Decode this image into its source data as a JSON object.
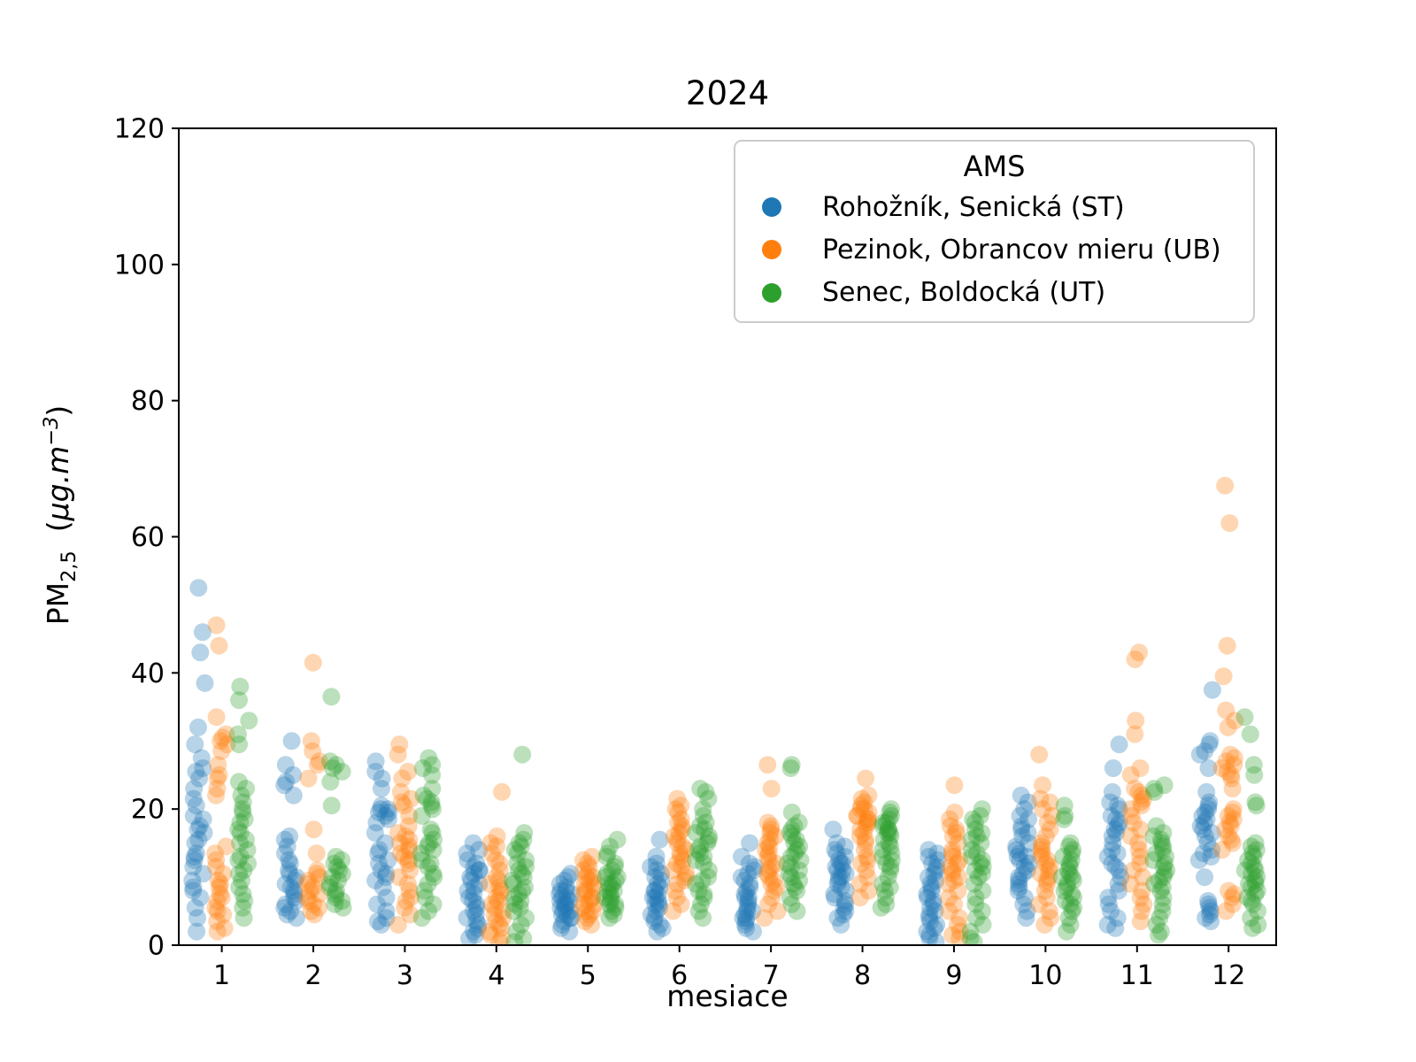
{
  "chart_data": {
    "type": "scatter",
    "title": "2024",
    "xlabel": "mesiace",
    "ylabel": "PM₂,₅  (µg.m⁻³)",
    "ylabel_parts": {
      "base": "PM",
      "sub": "2,5",
      "open": "  (",
      "unit": "µg.m",
      "sup": "−3",
      "close": ")"
    },
    "legend_title": "AMS",
    "legend_position": "upper right",
    "grid": false,
    "xlim": [
      0.53,
      12.52
    ],
    "ylim": [
      0,
      120
    ],
    "xticks": [
      1,
      2,
      3,
      4,
      5,
      6,
      7,
      8,
      9,
      10,
      11,
      12
    ],
    "yticks": [
      0,
      20,
      40,
      60,
      80,
      100,
      120
    ],
    "marker_alpha": 0.32,
    "series": [
      {
        "name": "Rohožník, Senická (ST)",
        "color": "#1f77b4",
        "offset": -0.25,
        "values_by_month": {
          "1": [
            52.5,
            46,
            43,
            38.5,
            32,
            29.5,
            27.5,
            26,
            25.5,
            24.5,
            23,
            21.5,
            20.5,
            19,
            18.5,
            17.5,
            17,
            16.5,
            15.5,
            15,
            13.5,
            13,
            12.5,
            11.5,
            10.5,
            9.5,
            8.5,
            8,
            7,
            5.5,
            4,
            2
          ],
          "2": [
            30,
            26.5,
            25,
            24,
            23.5,
            22,
            16,
            15.5,
            14.5,
            13.5,
            12.5,
            12,
            11,
            10.5,
            10,
            9.5,
            9,
            8.5,
            8,
            7.5,
            7,
            6.5,
            6,
            5.5,
            5,
            4.5,
            4
          ],
          "3": [
            27,
            25.5,
            24.5,
            23,
            20.5,
            20,
            20,
            19.5,
            19.5,
            19,
            18.5,
            18,
            16.5,
            15,
            14,
            13.5,
            12.5,
            12,
            11,
            10.5,
            10,
            9.5,
            8.5,
            7,
            6,
            5,
            4,
            3.5,
            3
          ],
          "4": [
            15,
            14,
            13.5,
            12.5,
            12,
            11.5,
            11,
            11,
            10.5,
            10,
            9.5,
            9,
            8.5,
            8,
            7.5,
            7,
            6.5,
            6,
            5.5,
            5,
            4.5,
            4,
            3.5,
            3,
            2.5,
            2,
            1.5,
            1
          ],
          "5": [
            10.5,
            10,
            9.5,
            9,
            8.5,
            8,
            8,
            7.5,
            7.5,
            7,
            7,
            6.5,
            6.5,
            6,
            6,
            5.5,
            5.5,
            5,
            5,
            4.5,
            4.5,
            4,
            4,
            3.5,
            3,
            2.5,
            2
          ],
          "6": [
            15.5,
            13,
            12,
            11.5,
            11,
            10.5,
            10,
            9.5,
            9,
            8.5,
            8,
            8,
            7.5,
            7,
            7,
            6.5,
            6,
            6,
            5.5,
            5,
            4.5,
            4,
            3.5,
            3,
            2.5,
            2
          ],
          "7": [
            15,
            13,
            12,
            11.5,
            11,
            10.5,
            10,
            9.5,
            9,
            8.5,
            8,
            7.5,
            7,
            7,
            6.5,
            6,
            5.5,
            5,
            5,
            4.5,
            4,
            4,
            3.5,
            3,
            2.5,
            2
          ],
          "8": [
            17,
            15,
            14.5,
            14,
            13.5,
            13,
            12.5,
            12,
            12,
            11.5,
            11,
            11,
            10.5,
            10,
            10,
            9.5,
            9,
            8.5,
            8,
            7.5,
            7,
            6.5,
            6,
            5.5,
            5,
            4.5,
            4,
            3
          ],
          "9": [
            14,
            13.5,
            13,
            12.5,
            12,
            11.5,
            11,
            10.5,
            10,
            9.5,
            9,
            8.5,
            8,
            7.5,
            7,
            6.5,
            6,
            5.5,
            5,
            4.5,
            4,
            3.5,
            3,
            2.5,
            2,
            1.5,
            1,
            0.5
          ],
          "10": [
            22,
            21,
            20,
            19,
            18.5,
            17.5,
            17,
            16.5,
            16,
            15,
            14.5,
            14,
            13.5,
            13,
            13,
            12.5,
            12,
            11.5,
            11,
            10.5,
            10,
            9.5,
            9,
            8.5,
            8,
            7,
            6,
            5,
            4
          ],
          "11": [
            29.5,
            26,
            22.5,
            21,
            20.5,
            20,
            19,
            18.5,
            18,
            17.5,
            17,
            16.5,
            16,
            15,
            14,
            13.5,
            13,
            12,
            11.5,
            11,
            10,
            9,
            8,
            7,
            6,
            5,
            4,
            3,
            2.5
          ],
          "12": [
            37.5,
            30,
            29.5,
            28.5,
            28,
            26,
            22.5,
            21,
            20.5,
            20,
            19.5,
            19,
            18.5,
            18,
            17.5,
            17,
            16.5,
            16,
            15,
            14,
            13.5,
            13,
            12.5,
            10,
            6.5,
            6,
            5.5,
            5,
            4.5,
            4,
            3.5
          ]
        }
      },
      {
        "name": "Pezinok, Obrancov mieru (UB)",
        "color": "#ff7f0e",
        "offset": 0,
        "values_by_month": {
          "1": [
            47,
            44,
            33.5,
            31,
            30.5,
            30,
            29.5,
            28.5,
            26.5,
            25,
            24.5,
            23,
            22,
            14.5,
            13.5,
            12.5,
            11.5,
            10.5,
            9.5,
            9,
            8.5,
            7.5,
            7,
            6.5,
            5.5,
            5,
            4.5,
            3.5,
            2.5,
            2
          ],
          "2": [
            41.5,
            30,
            28.5,
            27,
            26.5,
            24.5,
            17,
            13.5,
            11,
            10.5,
            10,
            9.5,
            9,
            8.5,
            8,
            7.5,
            7,
            6.5,
            6,
            5.5,
            5,
            4.5
          ],
          "3": [
            29.5,
            28,
            25.5,
            24.5,
            22.5,
            21.5,
            21,
            20.5,
            19,
            17.5,
            16.5,
            16,
            15.5,
            15,
            14.5,
            14,
            13.5,
            13,
            12.5,
            12,
            11,
            10,
            9,
            8,
            7,
            6.5,
            5.5,
            4.5,
            3
          ],
          "4": [
            22.5,
            16,
            15,
            14.5,
            13.5,
            12.5,
            12,
            11,
            10,
            9.5,
            9,
            8.5,
            8,
            7.5,
            7,
            6.5,
            6,
            5.5,
            5,
            4.5,
            4,
            3.5,
            3,
            2.5,
            2,
            1.5,
            1,
            0.5
          ],
          "5": [
            13,
            12.5,
            12,
            11.5,
            11,
            10.5,
            10,
            10,
            9.5,
            9,
            9,
            8.5,
            8,
            8,
            7.5,
            7,
            7,
            6.5,
            6,
            6,
            5.5,
            5,
            5,
            4.5,
            4,
            3.5,
            3
          ],
          "6": [
            21.5,
            20.5,
            20,
            19.5,
            18.5,
            18,
            17.5,
            17,
            16.5,
            16,
            15.5,
            15,
            14.5,
            14,
            13.5,
            13,
            12.5,
            12,
            11.5,
            11,
            10.5,
            10,
            9.5,
            9,
            8,
            7,
            6,
            5
          ],
          "7": [
            26.5,
            23,
            18,
            17.5,
            17,
            16.5,
            16,
            15.5,
            15,
            14.5,
            14,
            13.5,
            13,
            12.5,
            12,
            11.5,
            11,
            10.5,
            10,
            9.5,
            9,
            8.5,
            8,
            7,
            6,
            5,
            4
          ],
          "8": [
            24.5,
            22,
            21.5,
            21,
            20.5,
            20,
            20,
            19.5,
            19,
            19,
            18.5,
            18.5,
            18,
            18,
            17.5,
            17,
            16.5,
            16,
            15.5,
            15,
            14,
            13,
            12.5,
            12,
            11,
            10,
            9,
            8,
            7
          ],
          "9": [
            23.5,
            19.5,
            18.5,
            17.5,
            17,
            16.5,
            16,
            15,
            14,
            13.5,
            13,
            12.5,
            12,
            11.5,
            11,
            10.5,
            10,
            9.5,
            9,
            8,
            7,
            6,
            5,
            4,
            3,
            2,
            1.5,
            1
          ],
          "10": [
            28,
            23.5,
            21.5,
            21,
            20,
            19,
            18,
            17,
            16,
            15,
            14.5,
            14,
            13.5,
            13,
            12.5,
            12,
            11.5,
            11,
            10.5,
            10,
            9.5,
            9,
            8,
            7,
            6,
            5,
            4,
            3
          ],
          "11": [
            43,
            42,
            33,
            31,
            26,
            25,
            23,
            22.5,
            22,
            21.5,
            21,
            20.5,
            20,
            19,
            18,
            17,
            16,
            15,
            14,
            13,
            12,
            11,
            10,
            9,
            8,
            7,
            6,
            5,
            3.5
          ],
          "12": [
            67.5,
            62,
            44,
            39.5,
            34.5,
            33,
            32,
            28,
            27.5,
            27,
            26.5,
            26,
            25.5,
            25,
            24.5,
            23,
            20,
            19.5,
            19,
            18.5,
            18,
            17.5,
            17,
            16,
            15.5,
            15,
            14,
            8,
            7.5,
            7,
            6,
            5
          ]
        }
      },
      {
        "name": "Senec, Boldocká (UT)",
        "color": "#2ca02c",
        "offset": 0.25,
        "values_by_month": {
          "1": [
            38,
            36,
            33,
            31,
            29.5,
            24,
            23,
            22,
            21,
            20,
            19.5,
            18.5,
            18,
            17,
            16.5,
            15.5,
            15,
            14,
            13,
            12.5,
            12,
            11,
            10.5,
            9.5,
            8.5,
            7.5,
            6.5,
            5.5,
            4
          ],
          "2": [
            36.5,
            27,
            26.5,
            26,
            25.5,
            24,
            20.5,
            13,
            12.5,
            12,
            11.5,
            11,
            10.5,
            10,
            9.5,
            9,
            8.5,
            8,
            7.5,
            7,
            6.5,
            6,
            5.5
          ],
          "3": [
            27.5,
            26.5,
            26,
            25,
            23,
            22,
            21.5,
            21,
            20.5,
            20,
            19,
            17,
            16.5,
            15.5,
            15,
            14.5,
            14,
            13.5,
            12.5,
            12,
            11.5,
            10.5,
            10,
            9,
            8,
            7,
            6,
            5,
            4
          ],
          "4": [
            28,
            16.5,
            15.5,
            15,
            14.5,
            14,
            13.5,
            12.5,
            12,
            11.5,
            11,
            10.5,
            10,
            9.5,
            9,
            8.5,
            8,
            7.5,
            7,
            6.5,
            6,
            5.5,
            5,
            4,
            3,
            2,
            1,
            0.5
          ],
          "5": [
            15.5,
            14.5,
            13.5,
            13,
            12,
            11.5,
            11,
            10.5,
            10,
            10,
            9.5,
            9,
            9,
            8.5,
            8,
            8,
            7.5,
            7,
            7,
            6.5,
            6,
            6,
            5.5,
            5,
            4.5,
            4
          ],
          "6": [
            23,
            22.5,
            21.5,
            20,
            19,
            18,
            17.5,
            17,
            16.5,
            16,
            15.5,
            15,
            14.5,
            14,
            13.5,
            13,
            12.5,
            12,
            11,
            10,
            9.5,
            9,
            8,
            7.5,
            7,
            6,
            5,
            4
          ],
          "7": [
            26.5,
            26,
            19.5,
            18,
            17.5,
            17,
            16.5,
            16,
            15.5,
            15,
            14.5,
            14,
            13.5,
            13,
            12.5,
            12,
            11.5,
            11,
            10.5,
            10,
            9.5,
            9,
            8.5,
            8,
            7,
            6,
            5
          ],
          "8": [
            20,
            19.5,
            19,
            18.5,
            18,
            18,
            17.5,
            17,
            17,
            16.5,
            16.5,
            16,
            15.5,
            15,
            14.5,
            14,
            13.5,
            13,
            12.5,
            12,
            11.5,
            11,
            10,
            9,
            8.5,
            8,
            7,
            6,
            5.5
          ],
          "9": [
            20,
            19,
            18.5,
            18,
            17,
            16.5,
            16,
            15.5,
            15,
            14,
            13.5,
            13,
            12.5,
            12,
            11.5,
            11,
            10.5,
            10,
            9,
            8,
            7,
            6,
            5,
            4,
            3,
            2,
            1,
            0.5
          ],
          "10": [
            20.5,
            19,
            18.5,
            15,
            14.5,
            14,
            13.5,
            13,
            12.5,
            12,
            11.5,
            11,
            10.5,
            10,
            10,
            9.5,
            9,
            8.5,
            8,
            7.5,
            7,
            6.5,
            6,
            5.5,
            5,
            4,
            3,
            2
          ],
          "11": [
            23.5,
            23,
            22.5,
            17.5,
            16.5,
            16,
            15.5,
            15,
            14.5,
            14,
            13.5,
            13,
            12.5,
            12,
            11.5,
            11,
            10.5,
            10,
            9.5,
            9,
            8.5,
            8,
            7,
            6,
            5,
            4,
            3,
            2,
            1.5
          ],
          "12": [
            33.5,
            31,
            26.5,
            25,
            21,
            20.5,
            15,
            14.5,
            14,
            13.5,
            13,
            12.5,
            12,
            11.5,
            11,
            11,
            10.5,
            10,
            9.5,
            9,
            9,
            8.5,
            8,
            7.5,
            7,
            6.5,
            6,
            5,
            4,
            3,
            2.5
          ]
        }
      }
    ]
  }
}
